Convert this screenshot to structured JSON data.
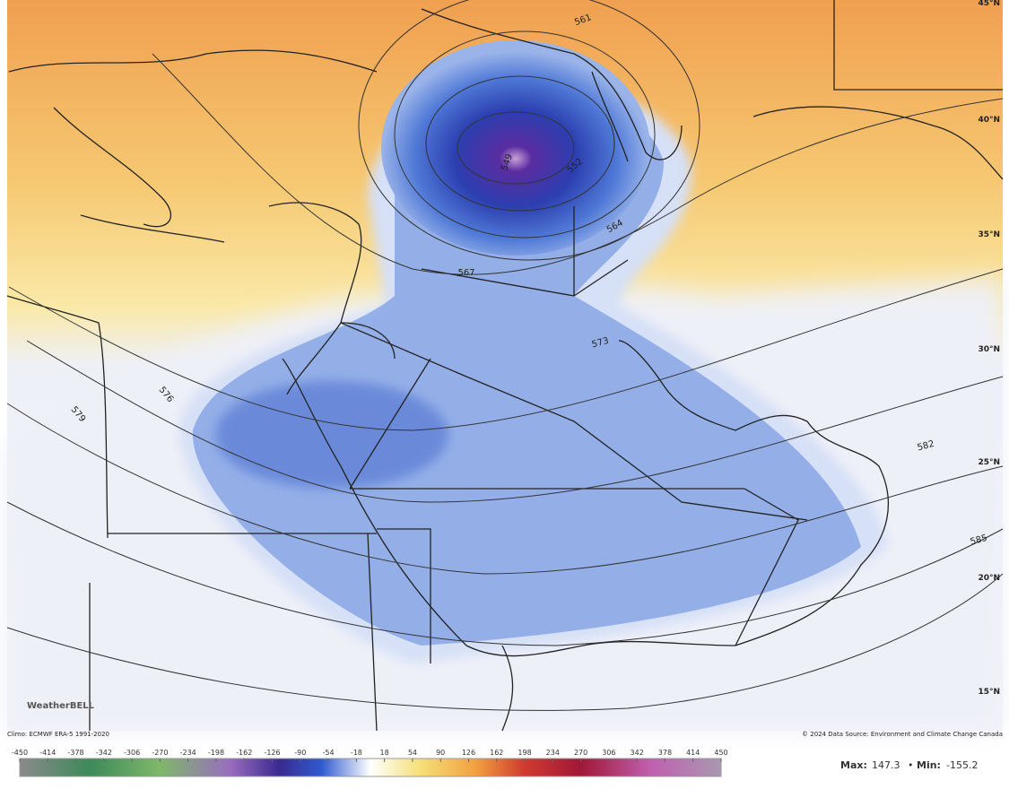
{
  "map": {
    "lat_labels": [
      "45°N",
      "40°N",
      "35°N",
      "30°N",
      "25°N",
      "20°N",
      "15°N"
    ],
    "contour_labels": [
      "561",
      "549",
      "552",
      "564",
      "567",
      "573",
      "576",
      "579",
      "582",
      "585"
    ],
    "logo": "WeatherBELL",
    "climo_credit": "Climo: ECMWF ERA-5 1991-2020",
    "source_credit": "© 2024 Data Source: Environment and Climate Change Canada"
  },
  "colorbar": {
    "ticks": [
      -450,
      -414,
      -378,
      -342,
      -306,
      -270,
      -234,
      -198,
      -162,
      -126,
      -90,
      -54,
      -18,
      18,
      54,
      90,
      126,
      162,
      198,
      234,
      270,
      306,
      342,
      378,
      414,
      450
    ]
  },
  "stats": {
    "max_label": "Max:",
    "max": 147.3,
    "min_label": "Min:",
    "min": -155.2
  }
}
